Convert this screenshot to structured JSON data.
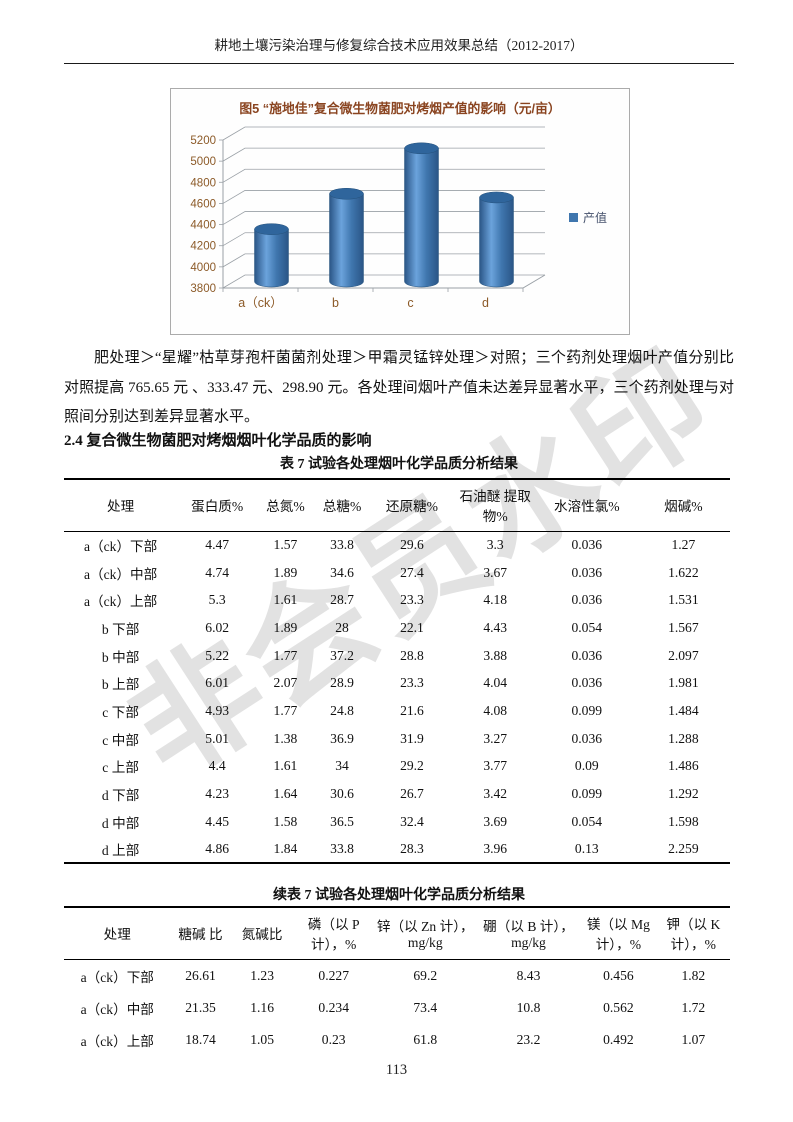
{
  "page": {
    "header": "耕地土壤污染治理与修复综合技术应用效果总结（2012-2017）",
    "page_number": "113",
    "watermark": "非会员水印"
  },
  "chart_data": {
    "type": "bar",
    "variant": "3d-cylinder",
    "title": "图5 “施地佳”复合微生物菌肥对烤烟产值的影响（元/亩）",
    "categories": [
      "a（ck）",
      "b",
      "c",
      "d"
    ],
    "series": [
      {
        "name": "产值",
        "values": [
          4295,
          4630,
          5060,
          4595
        ]
      }
    ],
    "ylim": [
      3800,
      5200
    ],
    "ytick_step": 200,
    "legend_position": "right",
    "grid": true,
    "colors": {
      "bar": "#3f76ae",
      "bar_dark": "#2a5586",
      "bar_light": "#6ba3dc",
      "axis_label": "#8c5a28",
      "grid_line": "#9aa0a6",
      "legend_text": "#44506b"
    }
  },
  "paragraph": "肥处理＞“星耀”枯草芽孢杆菌菌剂处理＞甲霜灵锰锌处理＞对照；三个药剂处理烟叶产值分别比对照提高 765.65 元 、333.47 元、298.90 元。各处理间烟叶产值未达差异显著水平，三个药剂处理与对照间分别达到差异显著水平。",
  "section_heading": "2.4 复合微生物菌肥对烤烟烟叶化学品质的影响",
  "table1": {
    "title": "表 7 试验各处理烟叶化学品质分析结果",
    "headers": [
      "处理",
      "蛋白质%",
      "总氮%",
      "总糖%",
      "还原糖%",
      "石油醚 提取物%",
      "水溶性氯%",
      "烟碱%"
    ],
    "rows": [
      [
        "a（ck）下部",
        "4.47",
        "1.57",
        "33.8",
        "29.6",
        "3.3",
        "0.036",
        "1.27"
      ],
      [
        "a（ck）中部",
        "4.74",
        "1.89",
        "34.6",
        "27.4",
        "3.67",
        "0.036",
        "1.622"
      ],
      [
        "a（ck）上部",
        "5.3",
        "1.61",
        "28.7",
        "23.3",
        "4.18",
        "0.036",
        "1.531"
      ],
      [
        "b 下部",
        "6.02",
        "1.89",
        "28",
        "22.1",
        "4.43",
        "0.054",
        "1.567"
      ],
      [
        "b 中部",
        "5.22",
        "1.77",
        "37.2",
        "28.8",
        "3.88",
        "0.036",
        "2.097"
      ],
      [
        "b 上部",
        "6.01",
        "2.07",
        "28.9",
        "23.3",
        "4.04",
        "0.036",
        "1.981"
      ],
      [
        "c 下部",
        "4.93",
        "1.77",
        "24.8",
        "21.6",
        "4.08",
        "0.099",
        "1.484"
      ],
      [
        "c 中部",
        "5.01",
        "1.38",
        "36.9",
        "31.9",
        "3.27",
        "0.036",
        "1.288"
      ],
      [
        "c 上部",
        "4.4",
        "1.61",
        "34",
        "29.2",
        "3.77",
        "0.09",
        "1.486"
      ],
      [
        "d 下部",
        "4.23",
        "1.64",
        "30.6",
        "26.7",
        "3.42",
        "0.099",
        "1.292"
      ],
      [
        "d 中部",
        "4.45",
        "1.58",
        "36.5",
        "32.4",
        "3.69",
        "0.054",
        "1.598"
      ],
      [
        "d 上部",
        "4.86",
        "1.84",
        "33.8",
        "28.3",
        "3.96",
        "0.13",
        "2.259"
      ]
    ]
  },
  "table2": {
    "title": "续表 7 试验各处理烟叶化学品质分析结果",
    "headers": [
      "处理",
      "糖碱 比",
      "氮碱比",
      "磷（以 P 计），%",
      "锌（以 Zn 计）， mg/kg",
      "硼（以 B 计）， mg/kg",
      "镁（以 Mg 计），%",
      "钾（以 K 计），%"
    ],
    "rows": [
      [
        "a（ck）下部",
        "26.61",
        "1.23",
        "0.227",
        "69.2",
        "8.43",
        "0.456",
        "1.82"
      ],
      [
        "a（ck）中部",
        "21.35",
        "1.16",
        "0.234",
        "73.4",
        "10.8",
        "0.562",
        "1.72"
      ],
      [
        "a（ck）上部",
        "18.74",
        "1.05",
        "0.23",
        "61.8",
        "23.2",
        "0.492",
        "1.07"
      ]
    ]
  }
}
